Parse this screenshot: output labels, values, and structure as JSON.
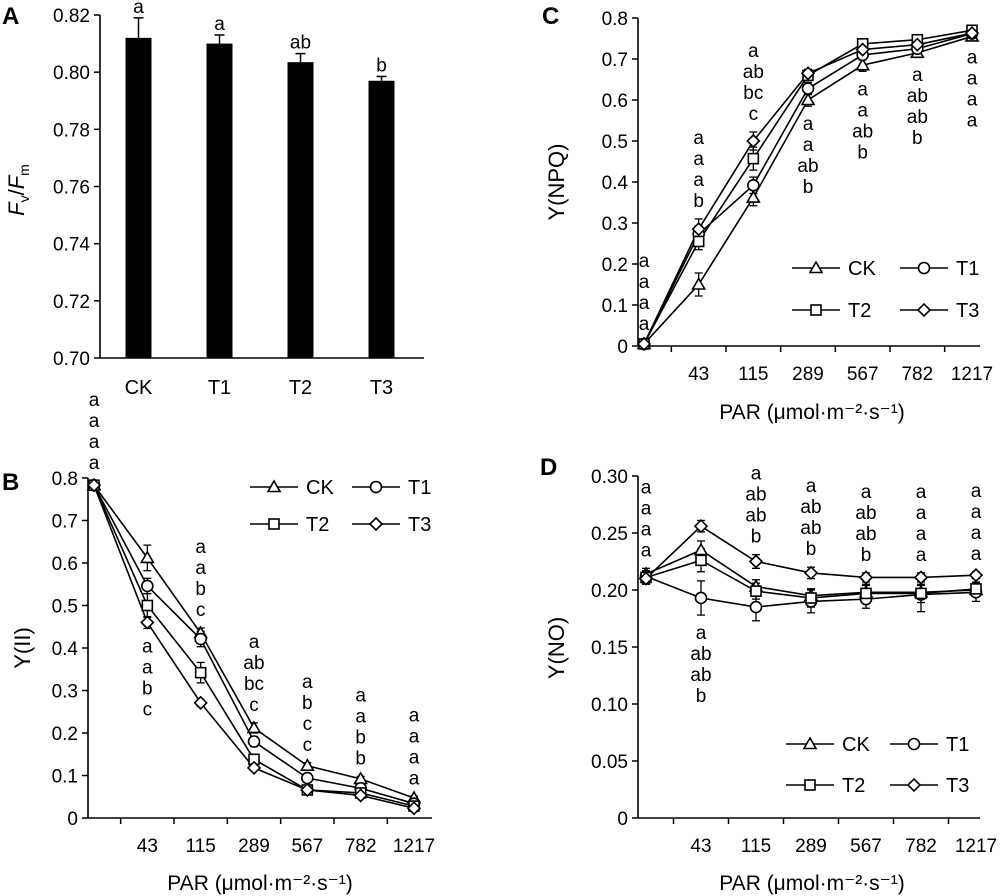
{
  "panels": {
    "A": {
      "letter": "A"
    },
    "B": {
      "letter": "B"
    },
    "C": {
      "letter": "C"
    },
    "D": {
      "letter": "D"
    }
  },
  "chart_data": [
    {
      "id": "A",
      "type": "bar",
      "ylabel_f": "F",
      "ylabel_v": "v",
      "ylabel_slash": "/",
      "ylabel_fm": "F",
      "ylabel_m": "m",
      "categories": [
        "CK",
        "T1",
        "T2",
        "T3"
      ],
      "values": [
        0.812,
        0.81,
        0.8035,
        0.797
      ],
      "errors": [
        0.007,
        0.003,
        0.003,
        0.0015
      ],
      "letters": [
        "a",
        "a",
        "ab",
        "b"
      ],
      "ylim": [
        0.7,
        0.82
      ],
      "yticks": [
        "0.70",
        "0.72",
        "0.74",
        "0.76",
        "0.78",
        "0.80",
        "0.82"
      ],
      "bar_color": "#000000"
    },
    {
      "id": "B",
      "type": "line",
      "ylabel": "Y(II)",
      "xlabel": "PAR (μmol·m⁻²·s⁻¹)",
      "x": [
        "0",
        "43",
        "115",
        "289",
        "567",
        "782",
        "1217"
      ],
      "xtick_labels": [
        "",
        "43",
        "115",
        "289",
        "567",
        "782",
        "1217"
      ],
      "ylim": [
        0,
        0.8
      ],
      "yticks": [
        "0",
        "0.1",
        "0.2",
        "0.3",
        "0.4",
        "0.5",
        "0.6",
        "0.7",
        "0.8"
      ],
      "legend": [
        "CK",
        "T1",
        "T2",
        "T3"
      ],
      "series": [
        {
          "name": "CK",
          "marker": "triangle",
          "values": [
            0.783,
            0.612,
            0.435,
            0.212,
            0.123,
            0.092,
            0.047
          ],
          "errors": [
            0.01,
            0.03,
            0.012,
            0.012,
            0.007,
            0.006,
            0.004
          ]
        },
        {
          "name": "T1",
          "marker": "circle",
          "values": [
            0.783,
            0.546,
            0.421,
            0.18,
            0.094,
            0.07,
            0.034
          ],
          "errors": [
            0.01,
            0.018,
            0.018,
            0.012,
            0.009,
            0.008,
            0.004
          ]
        },
        {
          "name": "T2",
          "marker": "square",
          "values": [
            0.783,
            0.5,
            0.342,
            0.138,
            0.066,
            0.059,
            0.028
          ],
          "errors": [
            0.01,
            0.028,
            0.024,
            0.012,
            0.006,
            0.006,
            0.004
          ]
        },
        {
          "name": "T3",
          "marker": "diamond",
          "values": [
            0.783,
            0.46,
            0.271,
            0.118,
            0.066,
            0.053,
            0.023
          ],
          "errors": [
            0.01,
            0.014,
            0.008,
            0.006,
            0.005,
            0.004,
            0.003
          ]
        }
      ],
      "letter_groups": [
        {
          "x": "0",
          "side": "above",
          "letters": [
            "a",
            "a",
            "a",
            "a"
          ]
        },
        {
          "x": "43",
          "side": "below",
          "letters": [
            "a",
            "a",
            "b",
            "c"
          ]
        },
        {
          "x": "115",
          "side": "above",
          "letters": [
            "a",
            "a",
            "b",
            "c"
          ]
        },
        {
          "x": "289",
          "side": "above",
          "letters": [
            "a",
            "ab",
            "bc",
            "c"
          ]
        },
        {
          "x": "567",
          "side": "above",
          "letters": [
            "a",
            "b",
            "c",
            "c"
          ]
        },
        {
          "x": "782",
          "side": "above",
          "letters": [
            "a",
            "a",
            "b",
            "b"
          ]
        },
        {
          "x": "1217",
          "side": "above",
          "letters": [
            "a",
            "a",
            "a",
            "a"
          ]
        }
      ]
    },
    {
      "id": "C",
      "type": "line",
      "ylabel": "Y(NPQ)",
      "xlabel": "PAR (μmol·m⁻²·s⁻¹)",
      "x": [
        "0",
        "43",
        "115",
        "289",
        "567",
        "782",
        "1217"
      ],
      "xtick_labels": [
        "",
        "43",
        "115",
        "289",
        "567",
        "782",
        "1217"
      ],
      "ylim": [
        0,
        0.8
      ],
      "yticks": [
        "0",
        "0.1",
        "0.2",
        "0.3",
        "0.4",
        "0.5",
        "0.6",
        "0.7",
        "0.8"
      ],
      "legend": [
        "CK",
        "T1",
        "T2",
        "T3"
      ],
      "series": [
        {
          "name": "CK",
          "marker": "triangle",
          "values": [
            0.005,
            0.15,
            0.362,
            0.6,
            0.685,
            0.715,
            0.755
          ],
          "errors": [
            0.005,
            0.028,
            0.02,
            0.015,
            0.015,
            0.01,
            0.008
          ]
        },
        {
          "name": "T1",
          "marker": "circle",
          "values": [
            0.005,
            0.273,
            0.392,
            0.628,
            0.71,
            0.725,
            0.762
          ],
          "errors": [
            0.005,
            0.02,
            0.02,
            0.015,
            0.012,
            0.01,
            0.008
          ]
        },
        {
          "name": "T2",
          "marker": "square",
          "values": [
            0.005,
            0.255,
            0.457,
            0.66,
            0.737,
            0.747,
            0.77
          ],
          "errors": [
            0.005,
            0.02,
            0.028,
            0.012,
            0.01,
            0.008,
            0.006
          ]
        },
        {
          "name": "T3",
          "marker": "diamond",
          "values": [
            0.005,
            0.285,
            0.5,
            0.665,
            0.723,
            0.735,
            0.763
          ],
          "errors": [
            0.005,
            0.025,
            0.022,
            0.01,
            0.01,
            0.008,
            0.006
          ]
        }
      ],
      "letter_groups": [
        {
          "x": "0",
          "side": "above",
          "letters": [
            "a",
            "a",
            "a",
            "a"
          ]
        },
        {
          "x": "43",
          "side": "above",
          "letters": [
            "a",
            "a",
            "a",
            "b"
          ]
        },
        {
          "x": "115",
          "side": "above",
          "letters": [
            "a",
            "ab",
            "bc",
            "c"
          ]
        },
        {
          "x": "289",
          "side": "below",
          "letters": [
            "a",
            "a",
            "ab",
            "b"
          ]
        },
        {
          "x": "567",
          "side": "below",
          "letters": [
            "a",
            "a",
            "ab",
            "b"
          ]
        },
        {
          "x": "782",
          "side": "below",
          "letters": [
            "a",
            "ab",
            "ab",
            "b"
          ]
        },
        {
          "x": "1217",
          "side": "below",
          "letters": [
            "a",
            "a",
            "a",
            "a"
          ]
        }
      ]
    },
    {
      "id": "D",
      "type": "line",
      "ylabel": "Y(NO)",
      "xlabel": "PAR (μmol·m⁻²·s⁻¹)",
      "x": [
        "0",
        "43",
        "115",
        "289",
        "567",
        "782",
        "1217"
      ],
      "xtick_labels": [
        "",
        "43",
        "115",
        "289",
        "567",
        "782",
        "1217"
      ],
      "ylim": [
        0,
        0.3
      ],
      "yticks": [
        "0",
        "0.05",
        "0.10",
        "0.15",
        "0.20",
        "0.25",
        "0.30"
      ],
      "legend": [
        "CK",
        "T1",
        "T2",
        "T3"
      ],
      "series": [
        {
          "name": "CK",
          "marker": "triangle",
          "values": [
            0.214,
            0.235,
            0.203,
            0.195,
            0.198,
            0.198,
            0.2
          ],
          "errors": [
            0.005,
            0.008,
            0.006,
            0.006,
            0.006,
            0.006,
            0.005
          ]
        },
        {
          "name": "T1",
          "marker": "circle",
          "values": [
            0.212,
            0.193,
            0.185,
            0.19,
            0.192,
            0.196,
            0.198
          ],
          "errors": [
            0.005,
            0.015,
            0.012,
            0.01,
            0.008,
            0.015,
            0.008
          ]
        },
        {
          "name": "T2",
          "marker": "square",
          "values": [
            0.211,
            0.226,
            0.199,
            0.193,
            0.197,
            0.197,
            0.201
          ],
          "errors": [
            0.005,
            0.01,
            0.007,
            0.008,
            0.008,
            0.008,
            0.006
          ]
        },
        {
          "name": "T3",
          "marker": "diamond",
          "values": [
            0.21,
            0.256,
            0.225,
            0.215,
            0.211,
            0.211,
            0.213
          ],
          "errors": [
            0.005,
            0.005,
            0.006,
            0.005,
            0.004,
            0.004,
            0.003
          ]
        }
      ],
      "letter_groups": [
        {
          "x": "0",
          "side": "above",
          "letters": [
            "a",
            "a",
            "a",
            "a"
          ]
        },
        {
          "x": "43",
          "side": "below",
          "letters": [
            "a",
            "ab",
            "ab",
            "b"
          ]
        },
        {
          "x": "115",
          "side": "above",
          "letters": [
            "a",
            "ab",
            "ab",
            "b"
          ]
        },
        {
          "x": "289",
          "side": "above",
          "letters": [
            "a",
            "ab",
            "ab",
            "b"
          ]
        },
        {
          "x": "567",
          "side": "above",
          "letters": [
            "a",
            "ab",
            "ab",
            "b"
          ]
        },
        {
          "x": "782",
          "side": "above",
          "letters": [
            "a",
            "a",
            "a",
            "a"
          ]
        },
        {
          "x": "1217",
          "side": "above",
          "letters": [
            "a",
            "a",
            "a",
            "a"
          ]
        }
      ]
    }
  ]
}
